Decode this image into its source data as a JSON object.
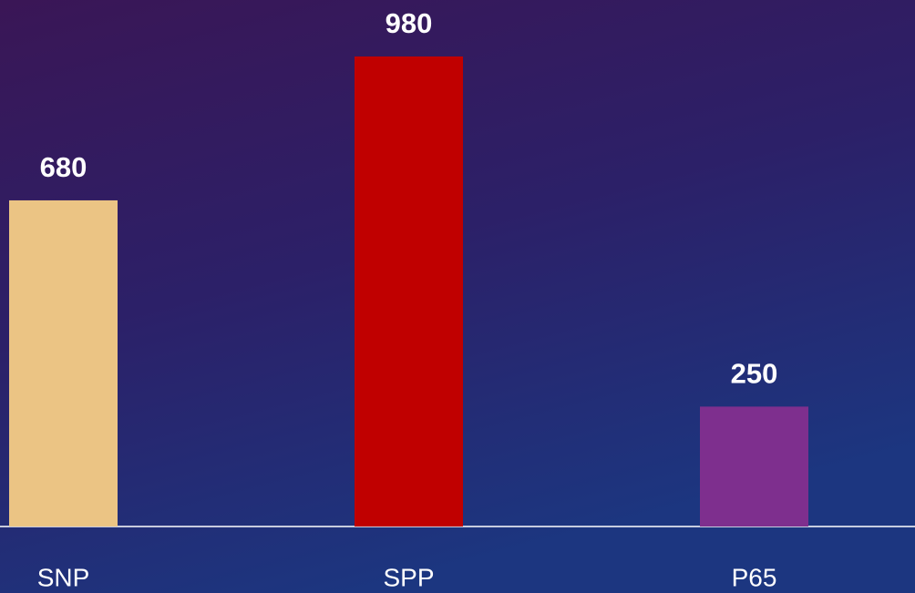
{
  "chart_data": {
    "type": "bar",
    "categories": [
      "SNP",
      "SPP",
      "P65"
    ],
    "values": [
      680,
      980,
      250
    ],
    "colors": [
      "#ebc484",
      "#c00000",
      "#7e2f8e"
    ]
  }
}
